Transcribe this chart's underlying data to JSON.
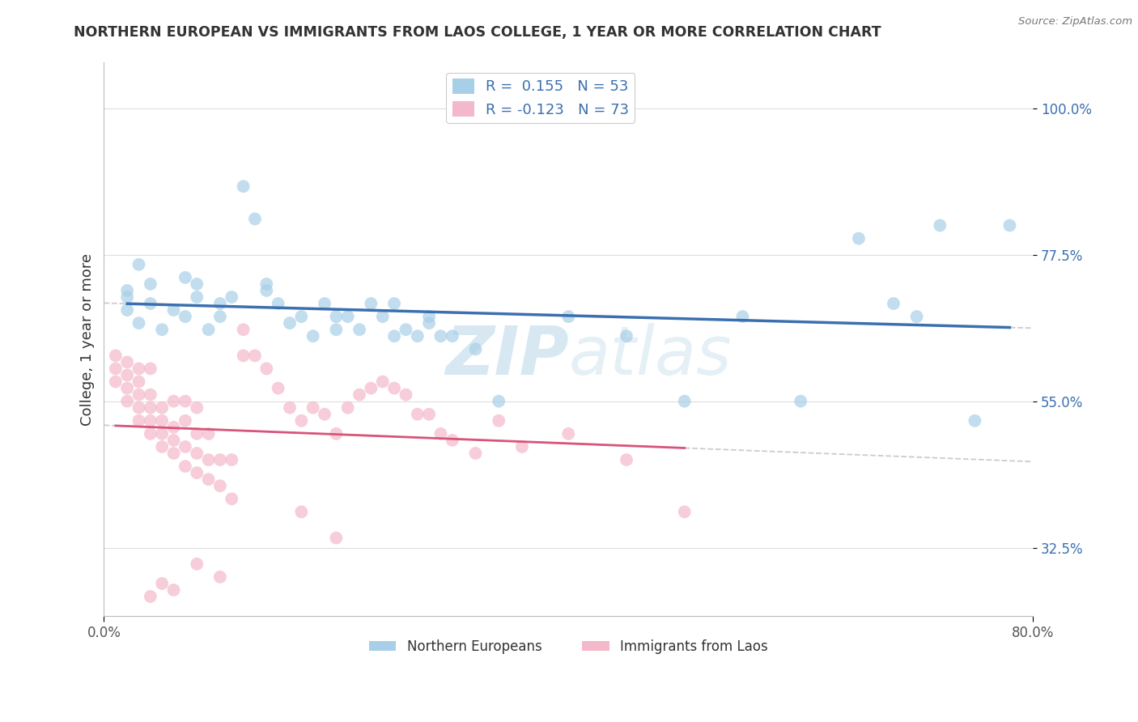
{
  "title": "NORTHERN EUROPEAN VS IMMIGRANTS FROM LAOS COLLEGE, 1 YEAR OR MORE CORRELATION CHART",
  "source_text": "Source: ZipAtlas.com",
  "ylabel": "College, 1 year or more",
  "xlim": [
    0.0,
    0.8
  ],
  "ylim": [
    0.22,
    1.07
  ],
  "x_tick_labels": [
    "0.0%",
    "80.0%"
  ],
  "x_tick_values": [
    0.0,
    0.8
  ],
  "y_tick_labels": [
    "32.5%",
    "55.0%",
    "77.5%",
    "100.0%"
  ],
  "y_tick_values": [
    0.325,
    0.55,
    0.775,
    1.0
  ],
  "legend1_label": "R =  0.155   N = 53",
  "legend2_label": "R = -0.123   N = 73",
  "legend_bottom_label1": "Northern Europeans",
  "legend_bottom_label2": "Immigrants from Laos",
  "blue_color": "#a8cfe8",
  "pink_color": "#f4b8cb",
  "blue_line_color": "#3b6faf",
  "pink_line_color": "#d9547a",
  "dashed_line_color": "#cccccc",
  "watermark_color": "#d0e4f0",
  "blue_scatter_x": [
    0.02,
    0.02,
    0.03,
    0.04,
    0.04,
    0.05,
    0.06,
    0.07,
    0.08,
    0.09,
    0.1,
    0.11,
    0.12,
    0.13,
    0.14,
    0.15,
    0.16,
    0.17,
    0.18,
    0.19,
    0.2,
    0.21,
    0.22,
    0.23,
    0.24,
    0.25,
    0.26,
    0.27,
    0.28,
    0.29,
    0.3,
    0.32,
    0.34,
    0.4,
    0.45,
    0.5,
    0.55,
    0.6,
    0.65,
    0.68,
    0.7,
    0.72,
    0.75,
    0.78,
    0.02,
    0.03,
    0.07,
    0.08,
    0.1,
    0.14,
    0.2,
    0.25,
    0.28
  ],
  "blue_scatter_y": [
    0.69,
    0.71,
    0.67,
    0.7,
    0.73,
    0.66,
    0.69,
    0.68,
    0.71,
    0.66,
    0.68,
    0.71,
    0.88,
    0.83,
    0.72,
    0.7,
    0.67,
    0.68,
    0.65,
    0.7,
    0.66,
    0.68,
    0.66,
    0.7,
    0.68,
    0.65,
    0.66,
    0.65,
    0.67,
    0.65,
    0.65,
    0.63,
    0.55,
    0.68,
    0.65,
    0.55,
    0.68,
    0.55,
    0.8,
    0.7,
    0.68,
    0.82,
    0.52,
    0.82,
    0.72,
    0.76,
    0.74,
    0.73,
    0.7,
    0.73,
    0.68,
    0.7,
    0.68
  ],
  "pink_scatter_x": [
    0.01,
    0.01,
    0.01,
    0.02,
    0.02,
    0.02,
    0.02,
    0.03,
    0.03,
    0.03,
    0.03,
    0.03,
    0.04,
    0.04,
    0.04,
    0.04,
    0.04,
    0.05,
    0.05,
    0.05,
    0.05,
    0.06,
    0.06,
    0.06,
    0.06,
    0.07,
    0.07,
    0.07,
    0.07,
    0.08,
    0.08,
    0.08,
    0.08,
    0.09,
    0.09,
    0.09,
    0.1,
    0.1,
    0.11,
    0.11,
    0.12,
    0.12,
    0.13,
    0.14,
    0.15,
    0.16,
    0.17,
    0.18,
    0.19,
    0.2,
    0.21,
    0.22,
    0.23,
    0.24,
    0.25,
    0.26,
    0.27,
    0.28,
    0.29,
    0.3,
    0.32,
    0.34,
    0.36,
    0.4,
    0.45,
    0.5,
    0.17,
    0.2,
    0.08,
    0.1,
    0.05,
    0.06,
    0.04
  ],
  "pink_scatter_y": [
    0.58,
    0.6,
    0.62,
    0.55,
    0.57,
    0.59,
    0.61,
    0.52,
    0.54,
    0.56,
    0.58,
    0.6,
    0.5,
    0.52,
    0.54,
    0.56,
    0.6,
    0.48,
    0.5,
    0.52,
    0.54,
    0.47,
    0.49,
    0.51,
    0.55,
    0.45,
    0.48,
    0.52,
    0.55,
    0.44,
    0.47,
    0.5,
    0.54,
    0.43,
    0.46,
    0.5,
    0.42,
    0.46,
    0.4,
    0.46,
    0.62,
    0.66,
    0.62,
    0.6,
    0.57,
    0.54,
    0.52,
    0.54,
    0.53,
    0.5,
    0.54,
    0.56,
    0.57,
    0.58,
    0.57,
    0.56,
    0.53,
    0.53,
    0.5,
    0.49,
    0.47,
    0.52,
    0.48,
    0.5,
    0.46,
    0.38,
    0.38,
    0.34,
    0.3,
    0.28,
    0.27,
    0.26,
    0.25
  ]
}
